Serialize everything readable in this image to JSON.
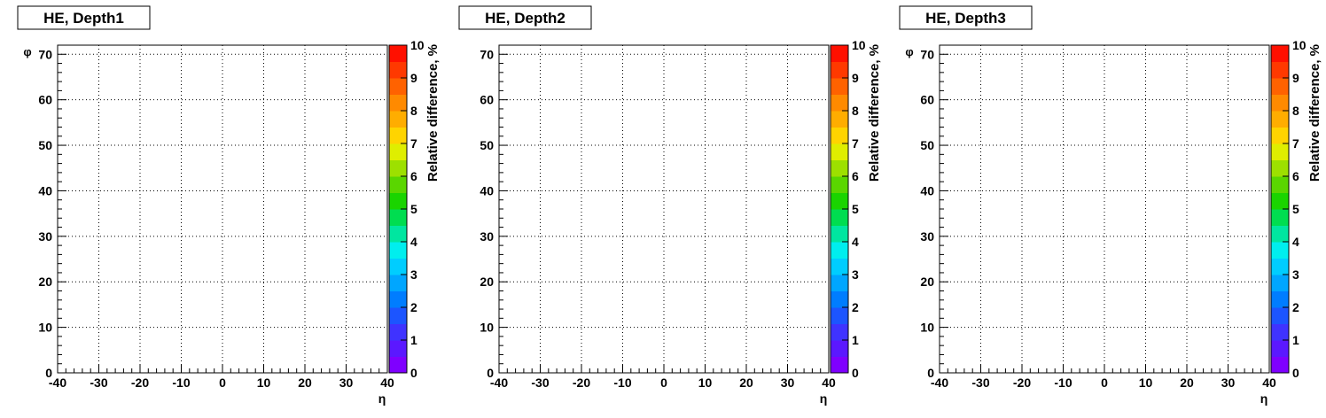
{
  "chart_data": [
    {
      "type": "heatmap",
      "title": "HE, Depth1",
      "xlabel": "η",
      "ylabel": "φ",
      "zlabel": "Relative difference, %",
      "xlim": [
        -40,
        40
      ],
      "ylim": [
        0,
        72
      ],
      "zlim": [
        0,
        10
      ],
      "xticks": [
        -40,
        -30,
        -20,
        -10,
        0,
        10,
        20,
        30,
        40
      ],
      "yticks": [
        0,
        10,
        20,
        30,
        40,
        50,
        60,
        70
      ],
      "zticks": [
        0,
        1,
        2,
        3,
        4,
        5,
        6,
        7,
        8,
        9,
        10
      ],
      "grid": true,
      "values": []
    },
    {
      "type": "heatmap",
      "title": "HE, Depth2",
      "xlabel": "η",
      "ylabel": "",
      "zlabel": "Relative difference, %",
      "xlim": [
        -40,
        40
      ],
      "ylim": [
        0,
        72
      ],
      "zlim": [
        0,
        10
      ],
      "xticks": [
        -40,
        -30,
        -20,
        -10,
        0,
        10,
        20,
        30,
        40
      ],
      "yticks": [
        0,
        10,
        20,
        30,
        40,
        50,
        60,
        70
      ],
      "zticks": [
        0,
        1,
        2,
        3,
        4,
        5,
        6,
        7,
        8,
        9,
        10
      ],
      "grid": true,
      "values": []
    },
    {
      "type": "heatmap",
      "title": "HE, Depth3",
      "xlabel": "η",
      "ylabel": "φ",
      "zlabel": "Relative difference, %",
      "xlim": [
        -40,
        40
      ],
      "ylim": [
        0,
        72
      ],
      "zlim": [
        0,
        10
      ],
      "xticks": [
        -40,
        -30,
        -20,
        -10,
        0,
        10,
        20,
        30,
        40
      ],
      "yticks": [
        0,
        10,
        20,
        30,
        40,
        50,
        60,
        70
      ],
      "zticks": [
        0,
        1,
        2,
        3,
        4,
        5,
        6,
        7,
        8,
        9,
        10
      ],
      "grid": true,
      "values": []
    }
  ],
  "palette": [
    "#7f00ff",
    "#5b18ff",
    "#3f33ff",
    "#1c55ff",
    "#007dff",
    "#00a6ff",
    "#00cdff",
    "#00eeee",
    "#00e6a0",
    "#00dd50",
    "#1ad400",
    "#5ad600",
    "#9de000",
    "#dfee00",
    "#ffd400",
    "#ffad00",
    "#ff8a00",
    "#ff6200",
    "#ff3900",
    "#ff1000"
  ]
}
